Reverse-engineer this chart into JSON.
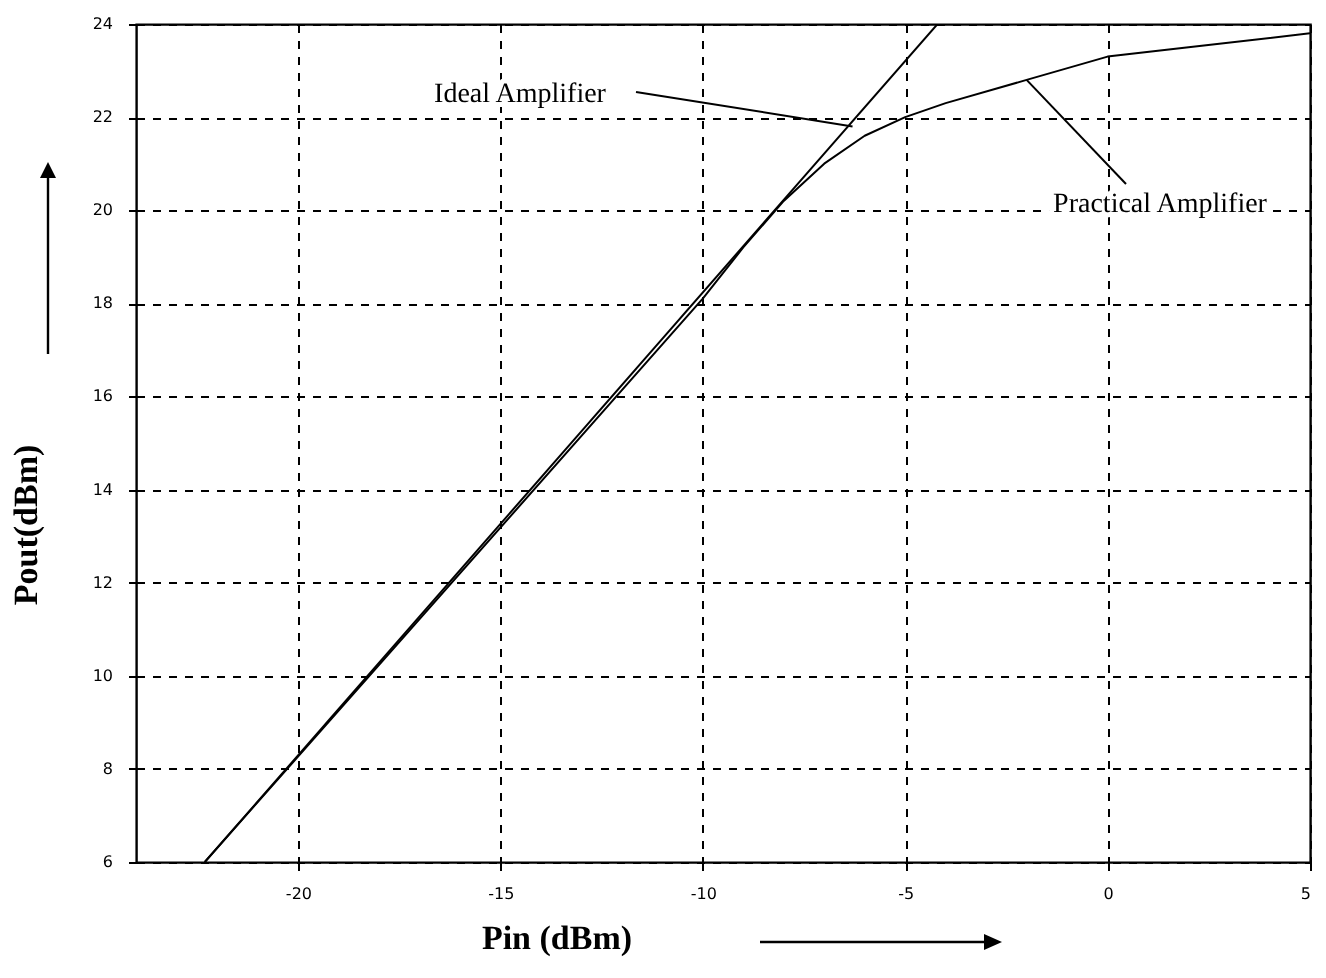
{
  "chart_data": {
    "type": "line",
    "xlabel": "Pin (dBm)",
    "ylabel": "Pout(dBm)",
    "xlim": [
      -24,
      5
    ],
    "xticks": [
      -20,
      -15,
      -10,
      -5,
      0,
      5
    ],
    "ylim": [
      6,
      24
    ],
    "yticks": [
      6,
      8,
      10,
      12,
      14,
      16,
      18,
      20,
      22,
      24
    ],
    "grid": true,
    "series": [
      {
        "color": "#000000",
        "x": [
          -22.3,
          -4.2
        ],
        "values": [
          6,
          24
        ]
      },
      {
        "color": "#000000",
        "x": [
          -22.3,
          -10,
          -9,
          -8,
          -7,
          -6,
          -5,
          -4,
          -2,
          0,
          2,
          5
        ],
        "values": [
          6,
          18.1,
          19.2,
          20.2,
          21.0,
          21.6,
          22.0,
          22.3,
          22.8,
          23.3,
          23.5,
          23.8
        ]
      }
    ],
    "annotations": [
      {
        "text": "Ideal Amplifier",
        "x": -6.3,
        "y": 21.8
      },
      {
        "text": "Practical Amplifier",
        "x": -2,
        "y": 22.8
      }
    ]
  }
}
